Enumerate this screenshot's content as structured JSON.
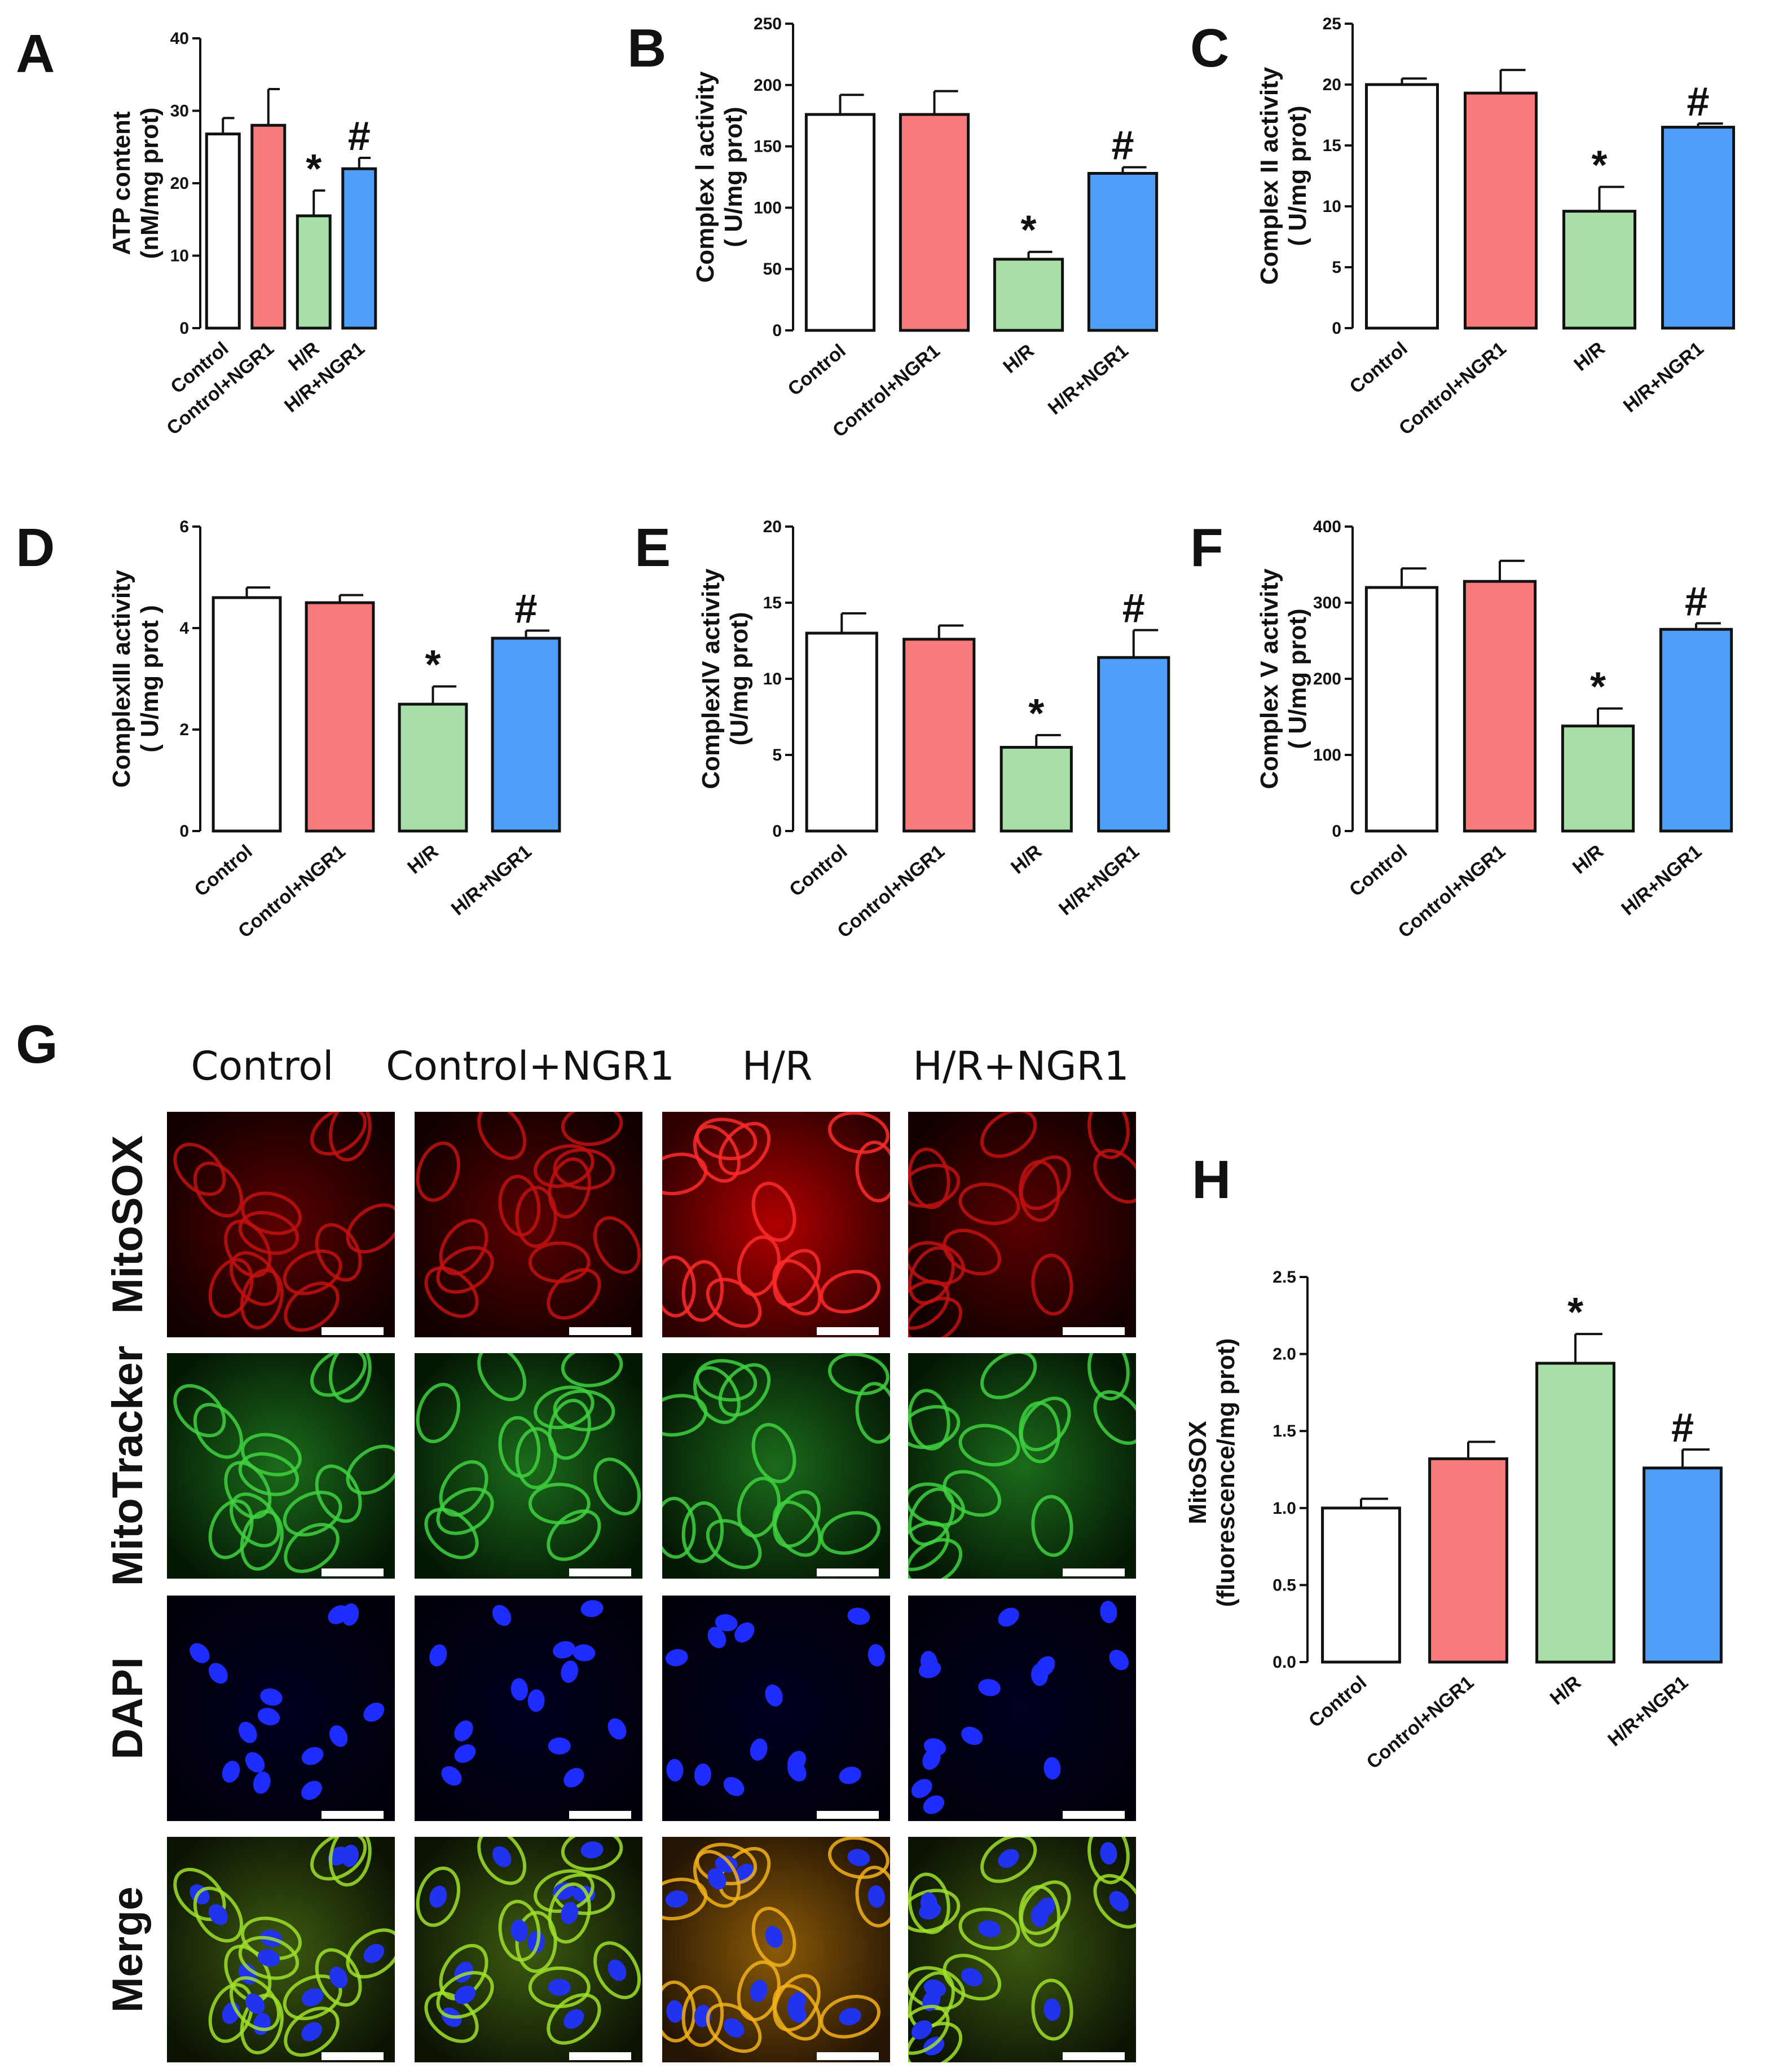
{
  "colors": {
    "Control": "#ffffff",
    "Control+NGR1": "#f77b7b",
    "H/R": "#a8dfa8",
    "H/R+NGR1": "#4f9ef7",
    "axis": "#111111"
  },
  "chart_data": [
    {
      "panel": "A",
      "type": "bar",
      "categories": [
        "Control",
        "Control+NGR1",
        "H/R",
        "H/R+NGR1"
      ],
      "values": [
        26.8,
        28.0,
        15.5,
        22.0
      ],
      "errors": [
        2.2,
        5.0,
        3.5,
        1.5
      ],
      "markers": [
        "",
        "",
        "*",
        "#"
      ],
      "ylabel_lines": [
        "ATP content",
        "(nM/mg prot)"
      ],
      "ylim": [
        0,
        40
      ],
      "yticks": [
        "0",
        "10",
        "20",
        "30",
        "40"
      ]
    },
    {
      "panel": "B",
      "type": "bar",
      "categories": [
        "Control",
        "Control+NGR1",
        "H/R",
        "H/R+NGR1"
      ],
      "values": [
        176,
        176,
        58,
        128
      ],
      "errors": [
        16,
        19,
        6,
        5
      ],
      "markers": [
        "",
        "",
        "*",
        "#"
      ],
      "ylabel_lines": [
        "Complex Ⅰ activity",
        "( U/mg prot)"
      ],
      "ylim": [
        0,
        250
      ],
      "yticks": [
        "0",
        "50",
        "100",
        "150",
        "200",
        "250"
      ]
    },
    {
      "panel": "C",
      "type": "bar",
      "categories": [
        "Control",
        "Control+NGR1",
        "H/R",
        "H/R+NGR1"
      ],
      "values": [
        20.0,
        19.3,
        9.6,
        16.5
      ],
      "errors": [
        0.5,
        1.9,
        2.0,
        0.3
      ],
      "markers": [
        "",
        "",
        "*",
        "#"
      ],
      "ylabel_lines": [
        "Complex II activity",
        "( U/mg prot)"
      ],
      "ylim": [
        0,
        25
      ],
      "yticks": [
        "0",
        "5",
        "10",
        "15",
        "20",
        "25"
      ]
    },
    {
      "panel": "D",
      "type": "bar",
      "categories": [
        "Control",
        "Control+NGR1",
        "H/R",
        "H/R+NGR1"
      ],
      "values": [
        4.6,
        4.5,
        2.5,
        3.8
      ],
      "errors": [
        0.2,
        0.15,
        0.35,
        0.15
      ],
      "markers": [
        "",
        "",
        "*",
        "#"
      ],
      "ylabel_lines": [
        "ComplexIII activity",
        "( U/mg prot )"
      ],
      "ylim": [
        0,
        6
      ],
      "yticks": [
        "0",
        "2",
        "4",
        "6"
      ]
    },
    {
      "panel": "E",
      "type": "bar",
      "categories": [
        "Control",
        "Control+NGR1",
        "H/R",
        "H/R+NGR1"
      ],
      "values": [
        13.0,
        12.6,
        5.5,
        11.4
      ],
      "errors": [
        1.3,
        0.9,
        0.8,
        1.8
      ],
      "markers": [
        "",
        "",
        "*",
        "#"
      ],
      "ylabel_lines": [
        "ComplexIV activity",
        "(U/mg prot)"
      ],
      "ylim": [
        0,
        20
      ],
      "yticks": [
        "0",
        "5",
        "10",
        "15",
        "20"
      ]
    },
    {
      "panel": "F",
      "type": "bar",
      "categories": [
        "Control",
        "Control+NGR1",
        "H/R",
        "H/R+NGR1"
      ],
      "values": [
        320,
        328,
        138,
        265
      ],
      "errors": [
        25,
        27,
        23,
        8
      ],
      "markers": [
        "",
        "",
        "*",
        "#"
      ],
      "ylabel_lines": [
        "Complex V activity",
        "( U/mg prot)"
      ],
      "ylim": [
        0,
        400
      ],
      "yticks": [
        "0",
        "100",
        "200",
        "300",
        "400"
      ]
    },
    {
      "panel": "H",
      "type": "bar",
      "categories": [
        "Control",
        "Control+NGR1",
        "H/R",
        "H/R+NGR1"
      ],
      "values": [
        1.0,
        1.32,
        1.94,
        1.26
      ],
      "errors": [
        0.06,
        0.11,
        0.19,
        0.12
      ],
      "markers": [
        "",
        "",
        "*",
        "#"
      ],
      "ylabel_lines": [
        "MitoSOX",
        "(fluorescence/mg prot)"
      ],
      "ylim": [
        0,
        2.5
      ],
      "yticks": [
        "0.0",
        "0.5",
        "1.0",
        "1.5",
        "2.0",
        "2.5"
      ]
    }
  ],
  "microscopy": {
    "panel": "G",
    "columns": [
      "Control",
      "Control+NGR1",
      "H/R",
      "H/R+NGR1"
    ],
    "rows": [
      "MitoSOX",
      "MitoTracker",
      "DAPI",
      "Merge"
    ]
  }
}
